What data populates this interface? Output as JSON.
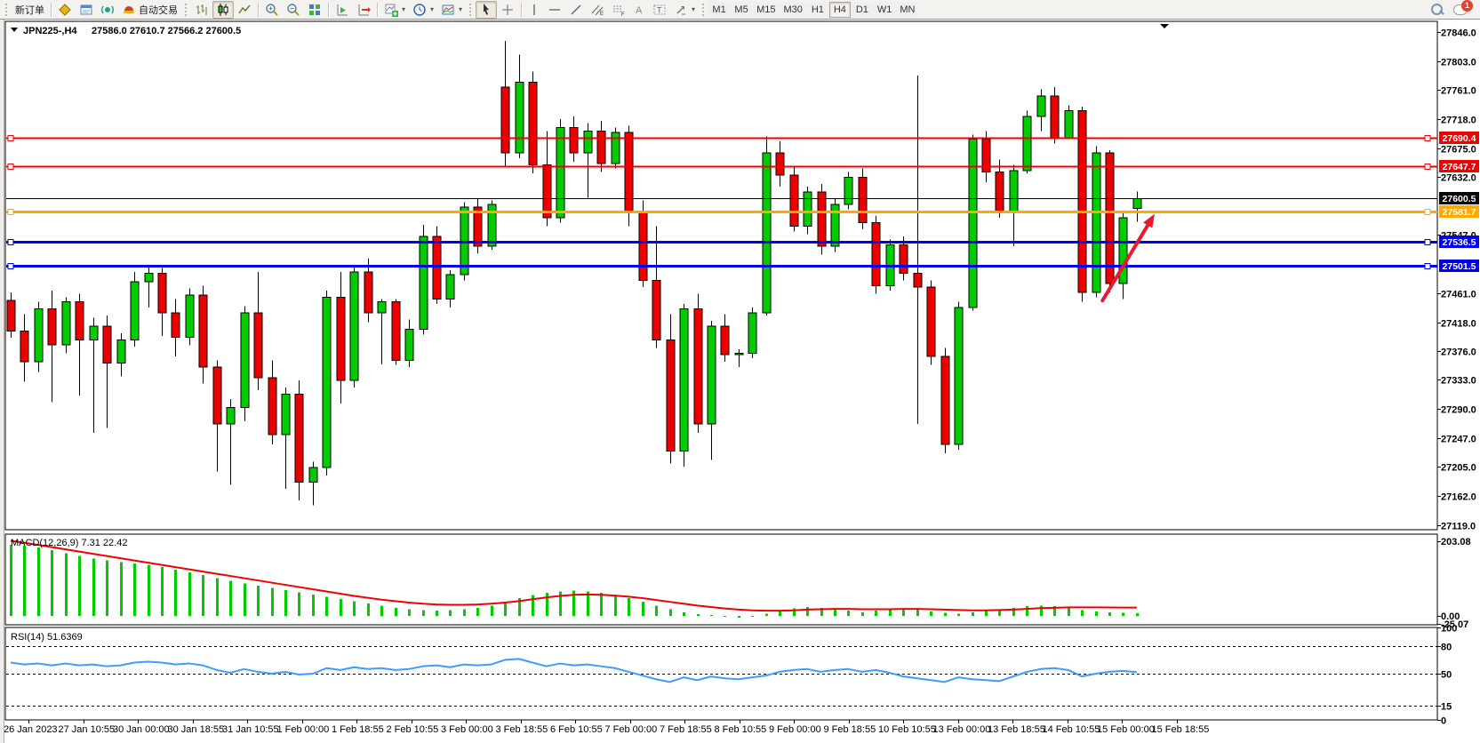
{
  "toolbar": {
    "new_order_label": "新订单",
    "autotrade_label": "自动交易",
    "timeframes": [
      "M1",
      "M5",
      "M15",
      "M30",
      "H1",
      "H4",
      "D1",
      "W1",
      "MN"
    ],
    "active_timeframe": "H4",
    "notification_count": "1"
  },
  "chart": {
    "title_symbol": "JPN225-,H4",
    "title_ohlc": "27586.0 27610.7 27566.2 27600.5"
  },
  "price_axis": {
    "ticks": [
      "27846.0",
      "27803.0",
      "27761.0",
      "27718.0",
      "27675.0",
      "27632.0",
      "27547.0",
      "27461.0",
      "27418.0",
      "27376.0",
      "27333.0",
      "27290.0",
      "27247.0",
      "27205.0",
      "27162.0",
      "27119.0"
    ],
    "top_price": 27862,
    "bottom_price": 27112
  },
  "price_lines": [
    {
      "name": "resistance-line-1",
      "value": 27690.4,
      "label": "27690.4",
      "color": "#f00000",
      "width": 2,
      "anchors": true
    },
    {
      "name": "resistance-line-2",
      "value": 27647.7,
      "label": "27647.7",
      "color": "#f00000",
      "width": 2,
      "anchors": true
    },
    {
      "name": "bid-price-line",
      "value": 27600.5,
      "label": "27600.5",
      "color": "#000000",
      "width": 1,
      "anchors": false
    },
    {
      "name": "pivot-line",
      "value": 27581.7,
      "label": "27581.7",
      "color": "#ffa800",
      "width": 3,
      "anchors": true
    },
    {
      "name": "support-line-1",
      "value": 27536.5,
      "label": "27536.5",
      "color": "#0000ee",
      "width": 3,
      "anchors": true
    },
    {
      "name": "support-line-2",
      "value": 27501.5,
      "label": "27501.5",
      "color": "#0000ee",
      "width": 3,
      "anchors": true
    }
  ],
  "chart_data": {
    "type": "candlestick",
    "symbol": "JPN225-",
    "timeframe": "H4",
    "title": "JPN225-,H4  27586.0 27610.7 27566.2 27600.5",
    "bull_color": "#00cc00",
    "bear_color": "#ee0000",
    "wick_color": "#000000",
    "ylim": [
      27119.0,
      27846.0
    ],
    "x_labels": [
      "26 Jan 2023",
      "27 Jan 10:55",
      "30 Jan 00:00",
      "30 Jan 18:55",
      "31 Jan 10:55",
      "1 Feb 00:00",
      "1 Feb 18:55",
      "2 Feb 10:55",
      "3 Feb 00:00",
      "3 Feb 18:55",
      "6 Feb 10:55",
      "7 Feb 00:00",
      "7 Feb 18:55",
      "8 Feb 10:55",
      "9 Feb 00:00",
      "9 Feb 18:55",
      "10 Feb 10:55",
      "13 Feb 00:00",
      "13 Feb 18:55",
      "14 Feb 10:55",
      "15 Feb 00:00",
      "15 Feb 18:55"
    ],
    "candles": {
      "open": [
        27450,
        27405,
        27360,
        27438,
        27385,
        27448,
        27392,
        27412,
        27358,
        27392,
        27478,
        27490,
        27432,
        27396,
        27458,
        27352,
        27268,
        27292,
        27432,
        27336,
        27252,
        27312,
        27182,
        27204,
        27455,
        27332,
        27492,
        27432,
        27448,
        27362,
        27408,
        27545,
        27452,
        27488,
        27588,
        27530,
        27765,
        27668,
        27772,
        27650,
        27572,
        27705,
        27668,
        27700,
        27652,
        27698,
        27580,
        27480,
        27392,
        27228,
        27438,
        27268,
        27412,
        27370,
        27372,
        27432,
        27668,
        27635,
        27560,
        27610,
        27530,
        27592,
        27632,
        27565,
        27472,
        27532,
        27490,
        27470,
        27368,
        27238,
        27440,
        27688,
        27640,
        27582,
        27642,
        27722,
        27752,
        27690,
        27730,
        27462,
        27668,
        27475,
        27586
      ],
      "high": [
        27462,
        27430,
        27448,
        27465,
        27455,
        27460,
        27425,
        27428,
        27402,
        27492,
        27502,
        27498,
        27452,
        27468,
        27472,
        27362,
        27305,
        27442,
        27492,
        27362,
        27322,
        27332,
        27212,
        27465,
        27492,
        27502,
        27512,
        27452,
        27452,
        27422,
        27562,
        27560,
        27495,
        27595,
        27600,
        27598,
        27833,
        27813,
        27788,
        27700,
        27718,
        27722,
        27712,
        27715,
        27705,
        27708,
        27598,
        27560,
        27430,
        27445,
        27460,
        27420,
        27430,
        27378,
        27440,
        27692,
        27685,
        27648,
        27618,
        27622,
        27600,
        27640,
        27645,
        27575,
        27540,
        27545,
        27782,
        27480,
        27380,
        27448,
        27695,
        27700,
        27658,
        27650,
        27730,
        27762,
        27765,
        27738,
        27736,
        27678,
        27672,
        27580,
        27610.7
      ],
      "low": [
        27395,
        27330,
        27345,
        27300,
        27372,
        27310,
        27255,
        27262,
        27338,
        27382,
        27440,
        27398,
        27368,
        27384,
        27328,
        27198,
        27178,
        27272,
        27318,
        27238,
        27172,
        27155,
        27148,
        27192,
        27298,
        27322,
        27418,
        27356,
        27355,
        27352,
        27400,
        27445,
        27440,
        27480,
        27520,
        27525,
        27648,
        27660,
        27638,
        27560,
        27565,
        27655,
        27602,
        27640,
        27645,
        27560,
        27470,
        27380,
        27210,
        27205,
        27255,
        27215,
        27360,
        27352,
        27365,
        27428,
        27618,
        27552,
        27548,
        27518,
        27522,
        27585,
        27555,
        27460,
        27465,
        27480,
        27268,
        27355,
        27225,
        27230,
        27435,
        27625,
        27572,
        27530,
        27638,
        27700,
        27682,
        27688,
        27448,
        27455,
        27462,
        27452,
        27566.2
      ],
      "close": [
        27405,
        27360,
        27438,
        27385,
        27448,
        27392,
        27412,
        27358,
        27392,
        27478,
        27490,
        27432,
        27396,
        27458,
        27352,
        27268,
        27292,
        27432,
        27336,
        27252,
        27312,
        27182,
        27204,
        27455,
        27332,
        27492,
        27432,
        27448,
        27362,
        27408,
        27545,
        27452,
        27488,
        27588,
        27530,
        27592,
        27668,
        27772,
        27650,
        27572,
        27705,
        27668,
        27700,
        27652,
        27698,
        27580,
        27480,
        27392,
        27228,
        27438,
        27268,
        27412,
        27370,
        27372,
        27432,
        27668,
        27635,
        27560,
        27610,
        27530,
        27592,
        27632,
        27565,
        27472,
        27532,
        27490,
        27470,
        27368,
        27238,
        27440,
        27688,
        27640,
        27582,
        27642,
        27722,
        27752,
        27690,
        27730,
        27462,
        27668,
        27475,
        27572,
        27600.5
      ]
    },
    "indicators": [
      {
        "name": "MACD",
        "label": "MACD(12,26,9) 7.31 22.42",
        "scale_ticks": [
          "203.08",
          "0.00",
          "-25.07"
        ],
        "max": 203.08,
        "min": -25.07,
        "hist_color": "#00cc00",
        "signal_color": "#f00000",
        "histogram": [
          192,
          190,
          185,
          178,
          170,
          162,
          155,
          150,
          145,
          142,
          138,
          132,
          125,
          118,
          110,
          102,
          95,
          88,
          82,
          76,
          70,
          64,
          58,
          52,
          46,
          40,
          34,
          28,
          22,
          18,
          16,
          15,
          16,
          18,
          22,
          28,
          38,
          48,
          56,
          62,
          66,
          68,
          66,
          62,
          56,
          48,
          38,
          28,
          18,
          10,
          5,
          2,
          -3,
          -5,
          -2,
          6,
          14,
          20,
          24,
          22,
          18,
          14,
          10,
          14,
          18,
          20,
          18,
          12,
          8,
          6,
          10,
          14,
          18,
          22,
          26,
          28,
          26,
          22,
          16,
          12,
          10,
          8,
          7.31
        ],
        "signal": [
          203,
          198,
          192,
          186,
          180,
          174,
          168,
          162,
          156,
          150,
          144,
          138,
          132,
          126,
          120,
          114,
          108,
          102,
          96,
          90,
          84,
          78,
          72,
          66,
          60,
          54,
          49,
          44,
          40,
          36,
          33,
          31,
          30,
          30,
          31,
          33,
          36,
          40,
          45,
          50,
          54,
          57,
          58,
          57,
          55,
          52,
          48,
          43,
          38,
          33,
          28,
          24,
          20,
          17,
          15,
          14,
          14,
          15,
          17,
          18,
          19,
          19,
          18,
          18,
          18,
          19,
          19,
          18,
          17,
          16,
          15,
          15,
          16,
          17,
          19,
          21,
          22,
          23,
          23,
          23,
          22.8,
          22.6,
          22.42
        ]
      },
      {
        "name": "RSI",
        "label": "RSI(14) 51.6369",
        "scale_ticks": [
          "100",
          "80",
          "50",
          "15",
          "0"
        ],
        "levels": [
          80,
          50,
          15
        ],
        "color": "#3f9bfe",
        "values": [
          62,
          60,
          61,
          59,
          61,
          59,
          60,
          58,
          59,
          62,
          63,
          62,
          60,
          61,
          59,
          54,
          51,
          55,
          52,
          50,
          52,
          49,
          50,
          56,
          54,
          57,
          55,
          56,
          54,
          55,
          58,
          59,
          57,
          60,
          59,
          60,
          65,
          66,
          62,
          58,
          61,
          59,
          60,
          58,
          56,
          52,
          48,
          44,
          41,
          46,
          43,
          47,
          45,
          44,
          46,
          48,
          52,
          54,
          55,
          52,
          54,
          55,
          52,
          54,
          51,
          47,
          45,
          43,
          41,
          46,
          44,
          43,
          42,
          47,
          52,
          55,
          56,
          54,
          47,
          50,
          52,
          53,
          51.64
        ]
      }
    ],
    "annotation_arrow": {
      "from_bar": 79.5,
      "from_price": 27450,
      "to_bar": 83.3,
      "to_price": 27578,
      "color": "#e81a2c"
    }
  }
}
